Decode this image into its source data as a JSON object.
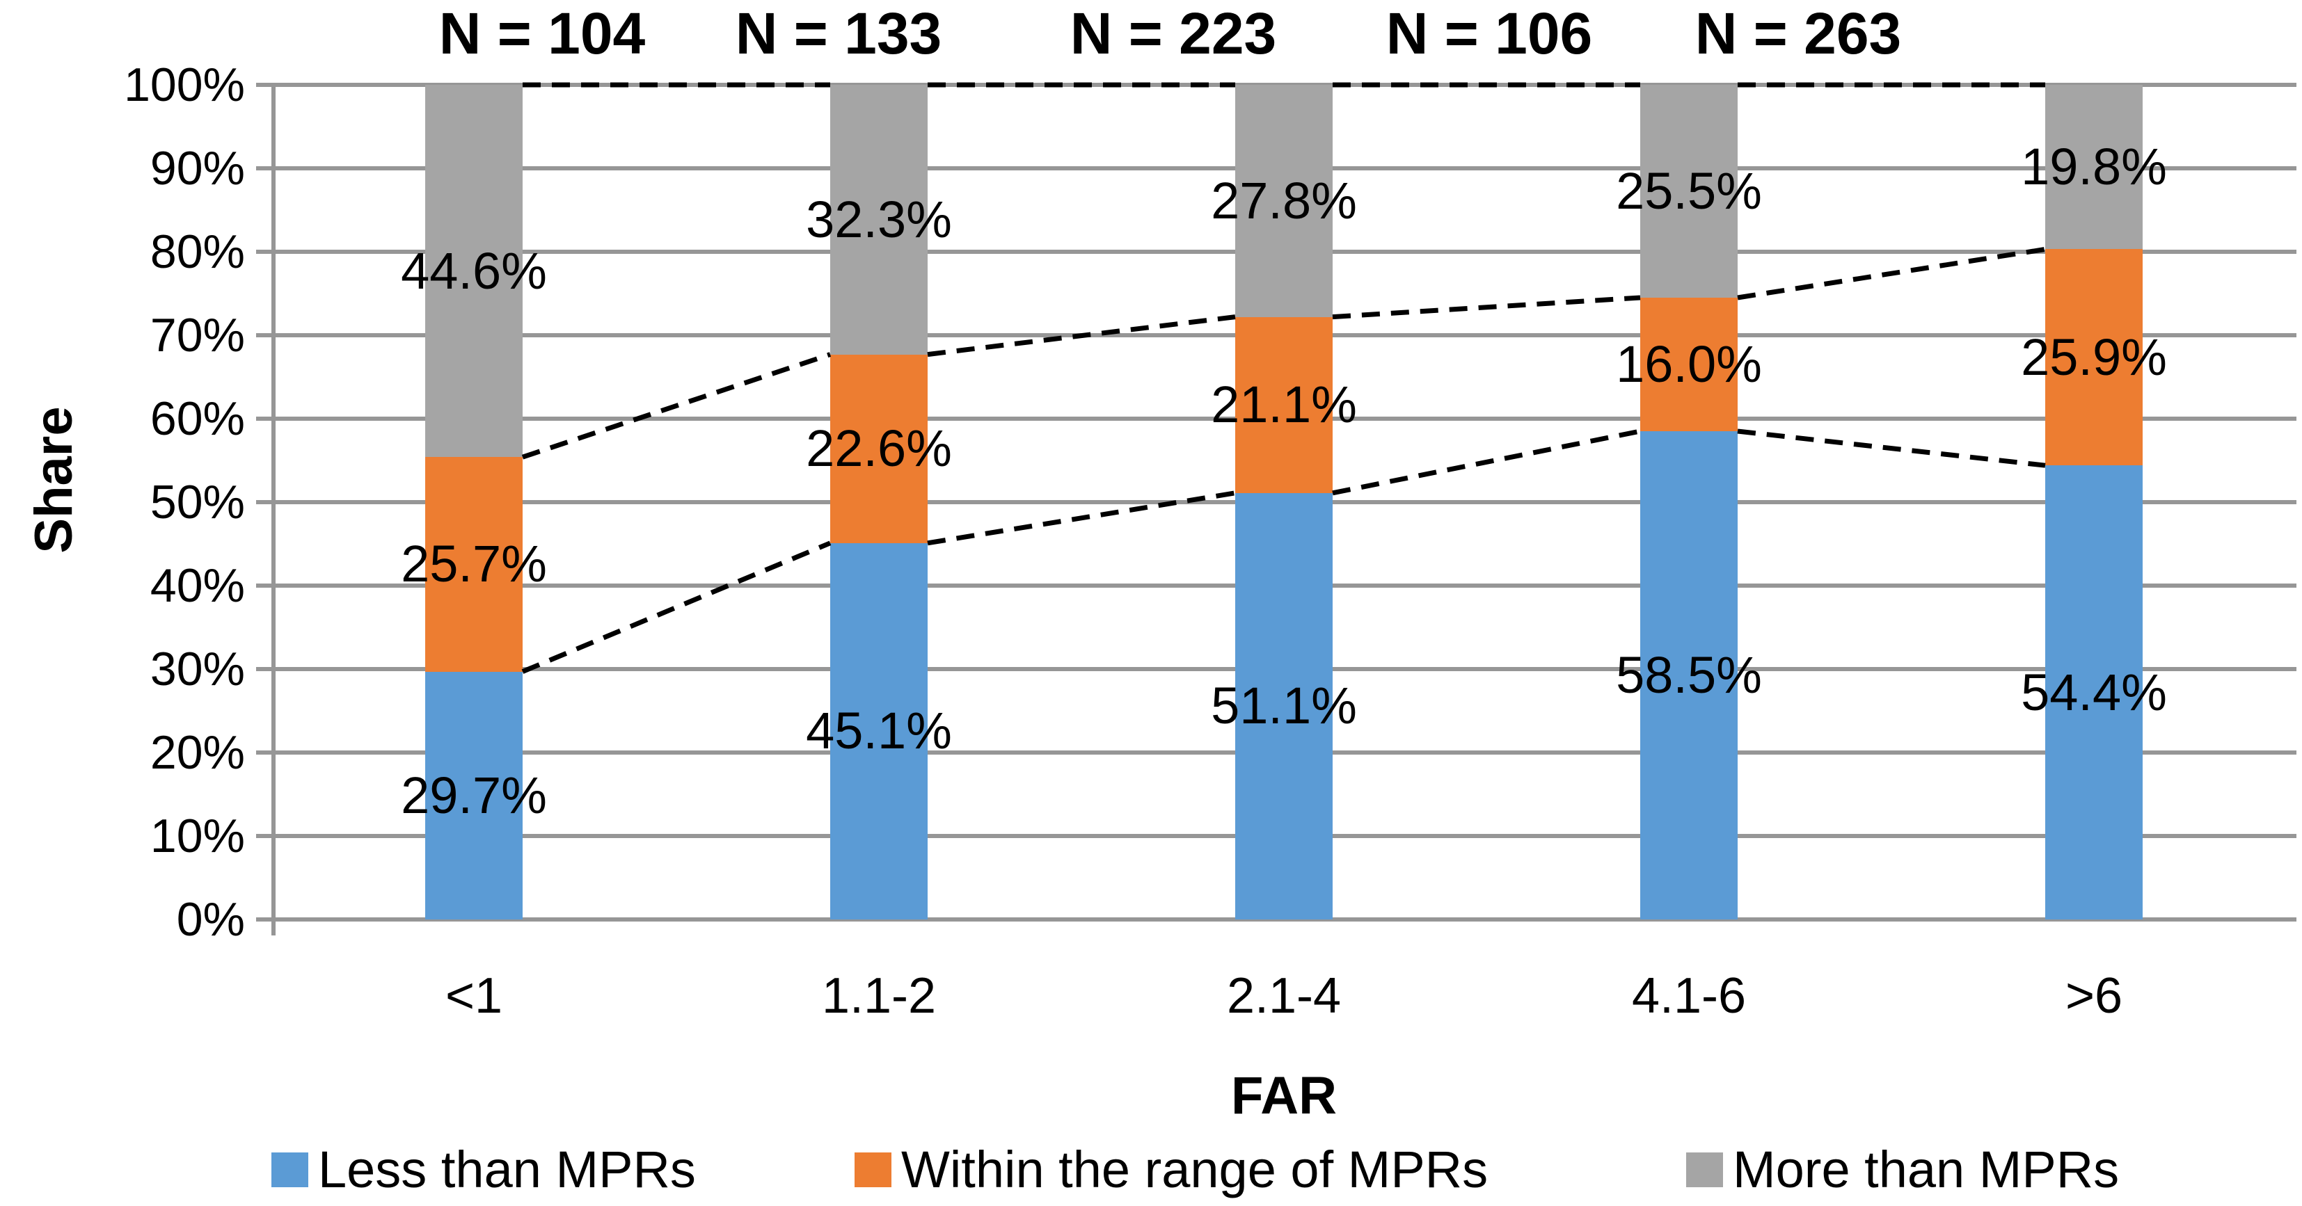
{
  "chart_data": {
    "type": "bar",
    "stacking": "percent",
    "xlabel": "FAR",
    "ylabel": "Share",
    "categories": [
      "<1",
      "1.1-2",
      "2.1-4",
      "4.1-6",
      ">6"
    ],
    "n_labels": [
      "N = 104",
      "N = 133",
      "N = 223",
      "N = 106",
      "N = 263"
    ],
    "series": [
      {
        "name": "Less than MPRs",
        "color": "#5B9BD5",
        "values": [
          29.7,
          45.1,
          51.1,
          58.5,
          54.4
        ]
      },
      {
        "name": "Within the range of MPRs",
        "color": "#ED7D31",
        "values": [
          25.7,
          22.6,
          21.1,
          16.0,
          25.9
        ]
      },
      {
        "name": "More than MPRs",
        "color": "#A5A5A5",
        "values": [
          44.6,
          32.3,
          27.8,
          25.5,
          19.8
        ]
      }
    ],
    "data_labels": [
      [
        "29.7%",
        "45.1%",
        "51.1%",
        "58.5%",
        "54.4%"
      ],
      [
        "25.7%",
        "22.6%",
        "21.1%",
        "16.0%",
        "25.9%"
      ],
      [
        "44.6%",
        "32.3%",
        "27.8%",
        "25.5%",
        "19.8%"
      ]
    ],
    "y_ticks": [
      "0%",
      "10%",
      "20%",
      "30%",
      "40%",
      "50%",
      "60%",
      "70%",
      "80%",
      "90%",
      "100%"
    ],
    "ylim": [
      0,
      100
    ],
    "grid": "horizontal",
    "gridline_color": "#969696",
    "axis_line_color": "#969696",
    "connector_lines": {
      "style": "dashed",
      "color": "#000000"
    },
    "legend_position": "bottom"
  }
}
